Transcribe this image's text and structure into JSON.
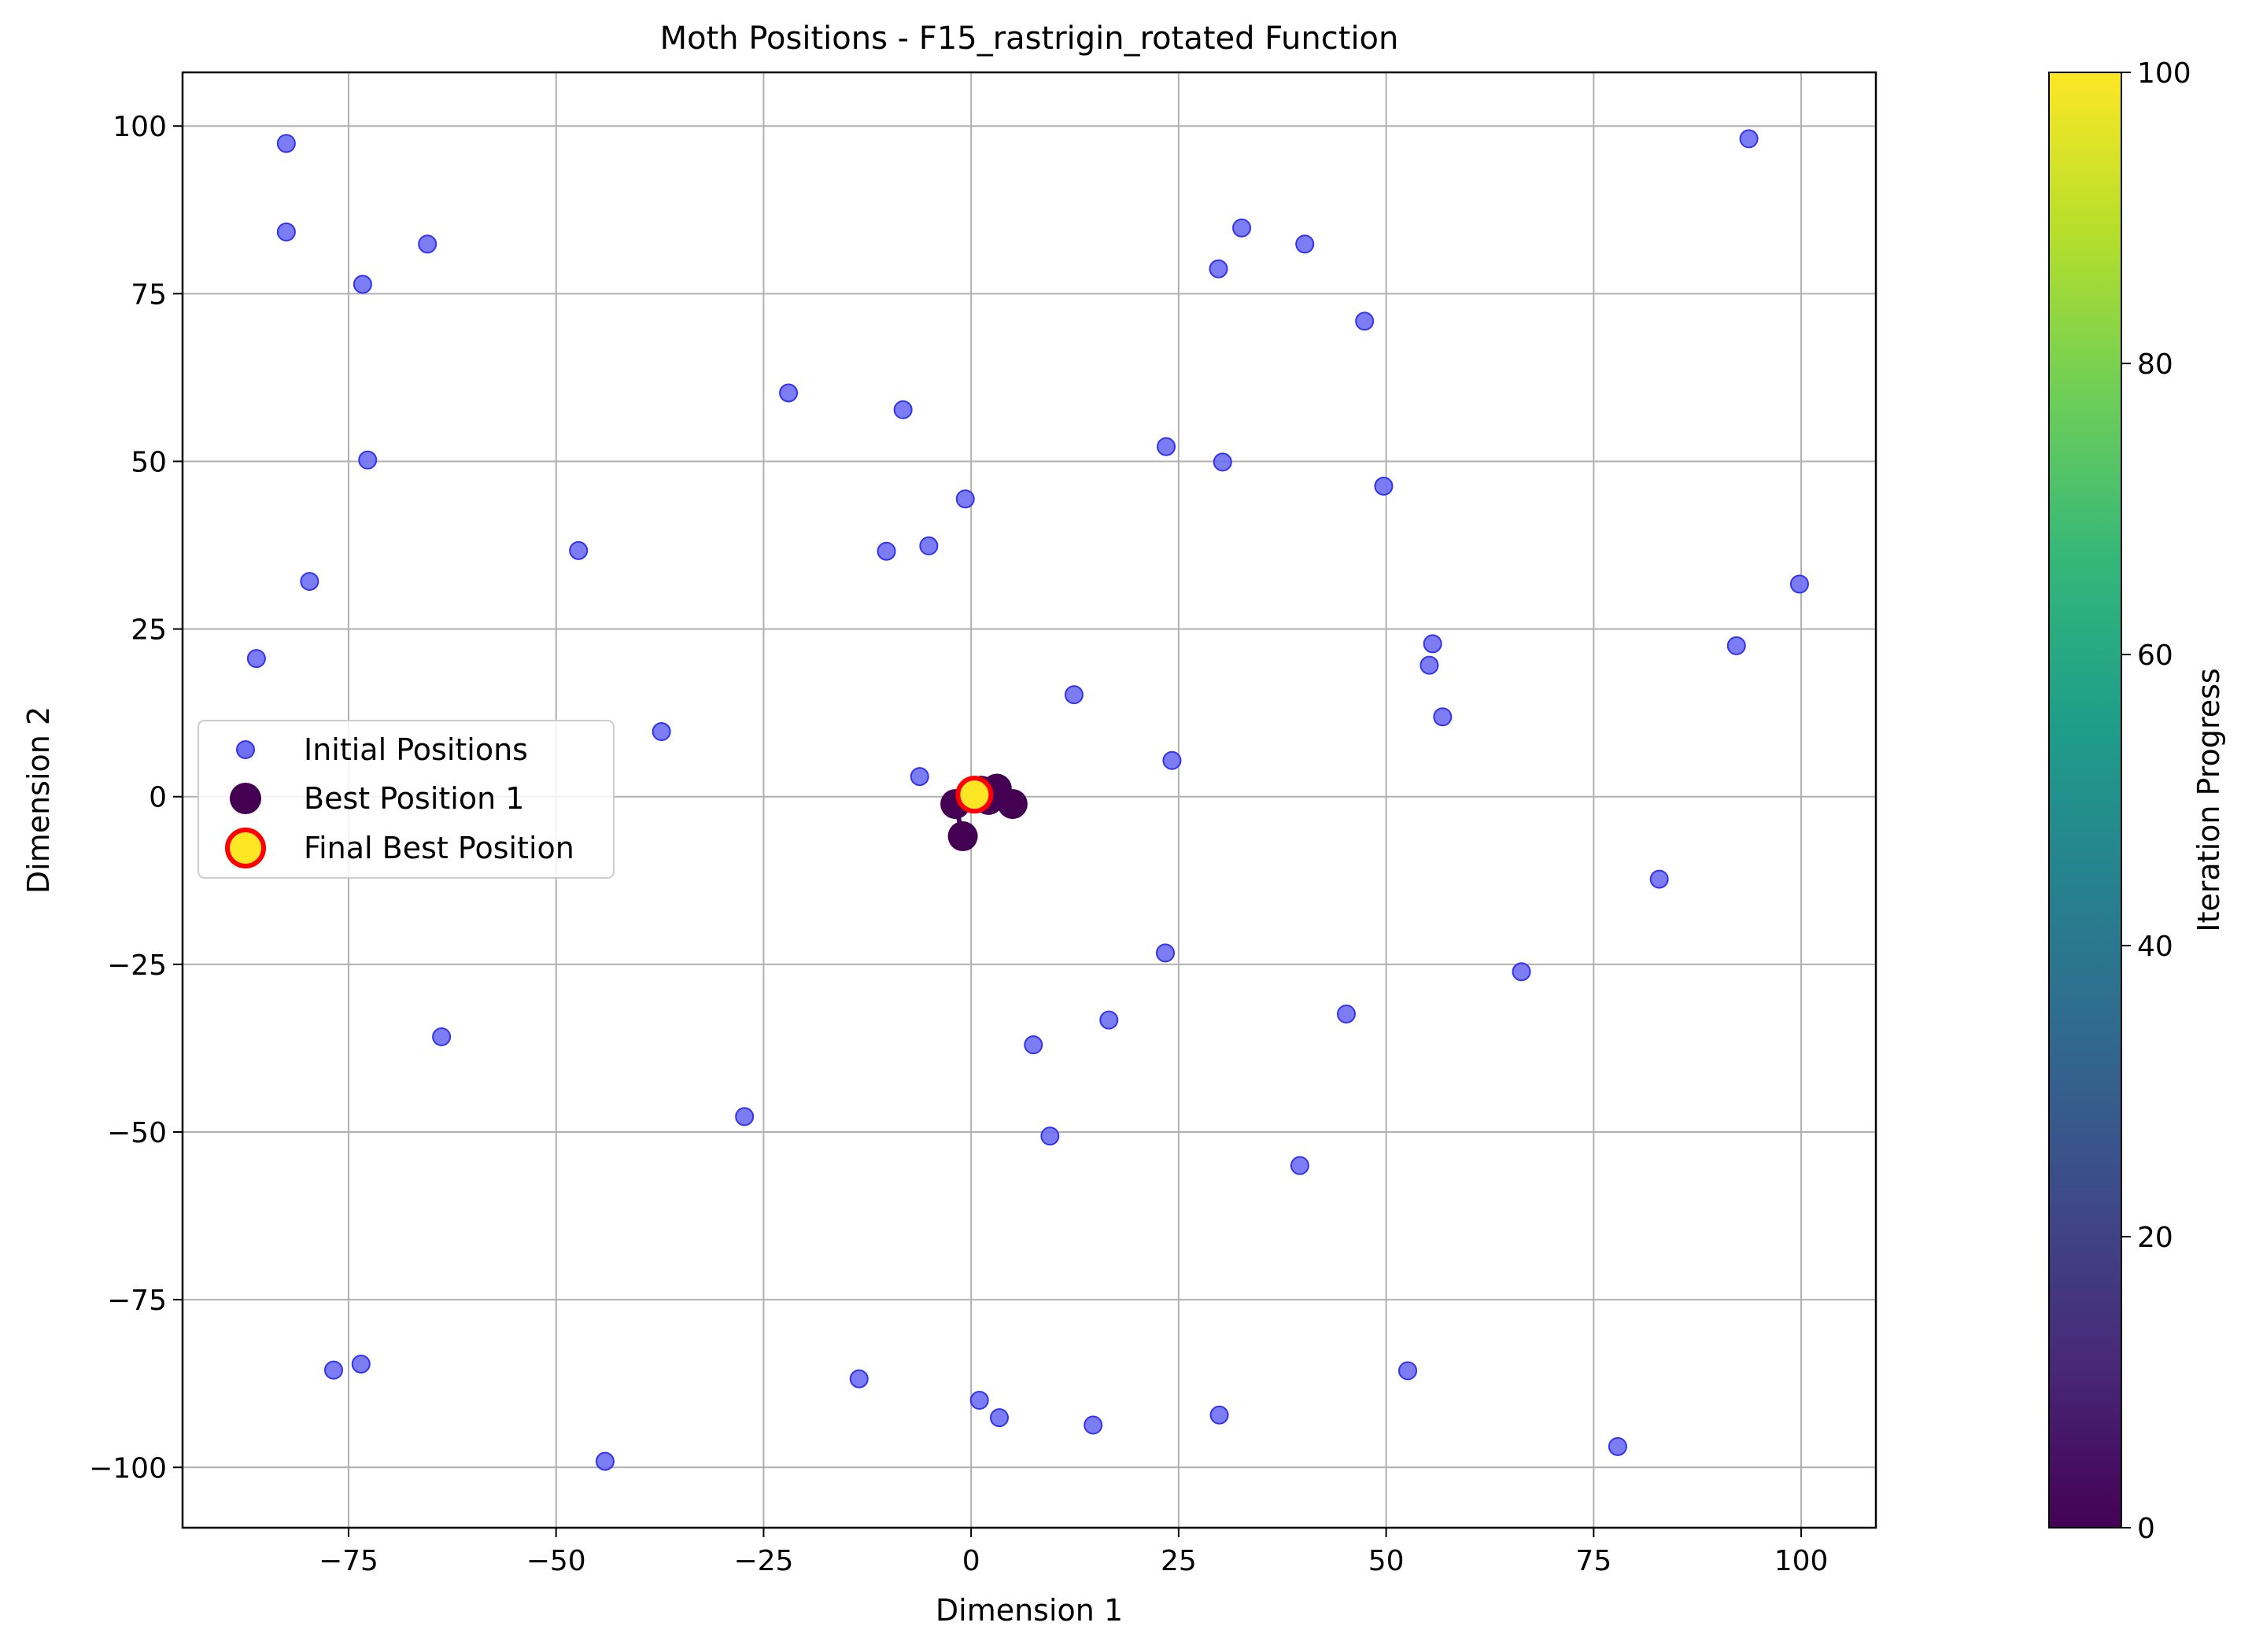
{
  "chart_data": {
    "type": "scatter",
    "title": "Moth Positions - F15_rastrigin_rotated Function",
    "xlabel": "Dimension 1",
    "ylabel": "Dimension 2",
    "xlim": [
      -95,
      109
    ],
    "ylim": [
      -109,
      108
    ],
    "xticks": [
      -75,
      -50,
      -25,
      0,
      25,
      50,
      75,
      100
    ],
    "yticks": [
      -100,
      -75,
      -50,
      -25,
      0,
      25,
      50,
      75,
      100
    ],
    "xtick_labels": [
      "−75",
      "−50",
      "−25",
      "0",
      "25",
      "50",
      "75",
      "100"
    ],
    "ytick_labels": [
      "−100",
      "−75",
      "−50",
      "−25",
      "0",
      "25",
      "50",
      "75",
      "100"
    ],
    "grid": true,
    "legend_position": "center-left",
    "series": [
      {
        "name": "Initial Positions",
        "color": "#6f6ff2",
        "edge_color": "#3333ee",
        "marker": "circle",
        "points": [
          [
            -82.5,
            97.4
          ],
          [
            -82.5,
            84.2
          ],
          [
            -73.3,
            76.4
          ],
          [
            -65.5,
            82.4
          ],
          [
            -72.7,
            50.2
          ],
          [
            -79.7,
            32.1
          ],
          [
            -86.1,
            20.6
          ],
          [
            -47.3,
            36.7
          ],
          [
            -37.3,
            9.7
          ],
          [
            -22.0,
            60.2
          ],
          [
            -8.2,
            57.7
          ],
          [
            -0.7,
            44.4
          ],
          [
            -10.2,
            36.6
          ],
          [
            -5.1,
            37.4
          ],
          [
            -6.2,
            3.0
          ],
          [
            12.4,
            15.2
          ],
          [
            23.5,
            52.2
          ],
          [
            30.3,
            49.9
          ],
          [
            29.8,
            78.7
          ],
          [
            32.6,
            84.8
          ],
          [
            40.2,
            82.4
          ],
          [
            47.4,
            70.9
          ],
          [
            49.7,
            46.3
          ],
          [
            55.6,
            22.8
          ],
          [
            55.2,
            19.6
          ],
          [
            56.8,
            11.9
          ],
          [
            24.2,
            5.4
          ],
          [
            93.7,
            98.1
          ],
          [
            99.8,
            31.7
          ],
          [
            92.2,
            22.5
          ],
          [
            82.9,
            -12.3
          ],
          [
            66.3,
            -26.1
          ],
          [
            45.2,
            -32.4
          ],
          [
            23.4,
            -23.3
          ],
          [
            16.6,
            -33.3
          ],
          [
            7.5,
            -37.0
          ],
          [
            9.5,
            -50.6
          ],
          [
            39.6,
            -55.0
          ],
          [
            -63.8,
            -35.8
          ],
          [
            -27.3,
            -47.7
          ],
          [
            -76.8,
            -85.5
          ],
          [
            -73.5,
            -84.6
          ],
          [
            -44.1,
            -99.1
          ],
          [
            -13.5,
            -86.8
          ],
          [
            1.0,
            -90.0
          ],
          [
            3.4,
            -92.6
          ],
          [
            14.7,
            -93.7
          ],
          [
            29.9,
            -92.2
          ],
          [
            52.6,
            -85.6
          ],
          [
            77.9,
            -96.9
          ]
        ]
      },
      {
        "name": "Best Position 1",
        "color": "#440154",
        "marker": "circle",
        "points": [
          [
            -1.0,
            -5.9
          ],
          [
            -1.9,
            -1.1
          ],
          [
            0.5,
            0.2
          ],
          [
            3.1,
            1.2
          ],
          [
            5.0,
            -1.1
          ],
          [
            2.1,
            -0.5
          ],
          [
            1.2,
            0.9
          ]
        ]
      },
      {
        "name": "Final Best Position",
        "color": "#fde725",
        "edge_color": "#ff0000",
        "marker": "circle",
        "points": [
          [
            0.4,
            0.3
          ]
        ]
      }
    ],
    "colorbar": {
      "label": "Iteration Progress",
      "range": [
        0,
        100
      ],
      "ticks": [
        0,
        20,
        40,
        60,
        80,
        100
      ],
      "tick_labels": [
        "0",
        "20",
        "40",
        "60",
        "80",
        "100"
      ],
      "colormap": [
        "#440154",
        "#482878",
        "#3e4989",
        "#31688e",
        "#26828e",
        "#1f9e89",
        "#35b779",
        "#6ece58",
        "#b5de2b",
        "#fde725"
      ]
    }
  }
}
